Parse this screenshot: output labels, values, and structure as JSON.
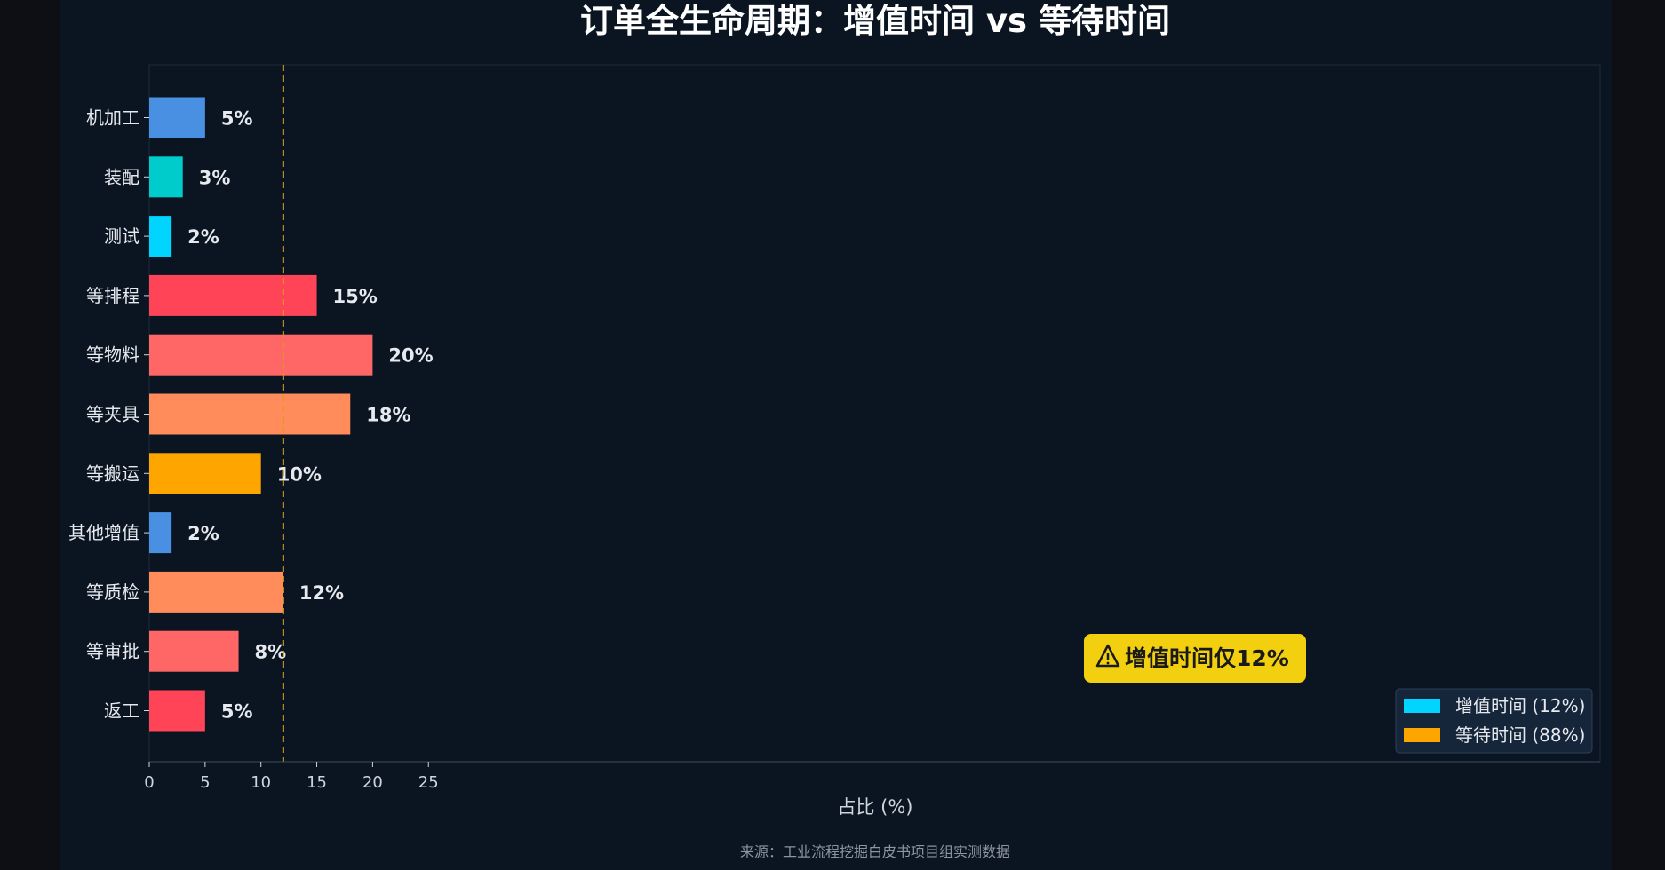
{
  "chart_data": {
    "type": "bar",
    "orientation": "horizontal",
    "title": "订单全生命周期：增值时间 vs 等待时间",
    "categories": [
      "机加工",
      "装配",
      "测试",
      "等排程",
      "等物料",
      "等夹具",
      "等搬运",
      "其他增值",
      "等质检",
      "等审批",
      "返工"
    ],
    "values": [
      5,
      3,
      2,
      15,
      20,
      18,
      10,
      2,
      12,
      8,
      5
    ],
    "value_labels": [
      "5%",
      "3%",
      "2%",
      "15%",
      "20%",
      "18%",
      "10%",
      "2%",
      "12%",
      "8%",
      "5%"
    ],
    "bar_colors": [
      "#4a90e2",
      "#00cccc",
      "#00d4ff",
      "#ff4458",
      "#ff6666",
      "#ff8c5a",
      "#ffa500",
      "#4a90e2",
      "#ff8c5a",
      "#ff6666",
      "#ff4458"
    ],
    "xlabel": "占比 (%)",
    "ylabel": "",
    "xlim": [
      0,
      26
    ],
    "xticks": [
      0,
      5,
      10,
      15,
      20,
      25
    ],
    "reference_line": {
      "x": 12,
      "color": "#d4a017",
      "style": "dashed"
    },
    "annotation": {
      "text": "增值时间仅12%",
      "icon": "warning-icon",
      "color": "#f2d00f"
    },
    "legend": {
      "placement": "bottom-right",
      "items": [
        {
          "label": "增值时间 (12%)",
          "color": "#00d4ff"
        },
        {
          "label": "等待时间 (88%)",
          "color": "#ffa500"
        }
      ]
    },
    "grid": false,
    "source": "来源：工业流程挖掘白皮书项目组实测数据"
  },
  "colors": {
    "background": "#0b1522",
    "page": "#0d0f14",
    "axis": "#3a4a5c",
    "text": "#e6e9ee"
  }
}
